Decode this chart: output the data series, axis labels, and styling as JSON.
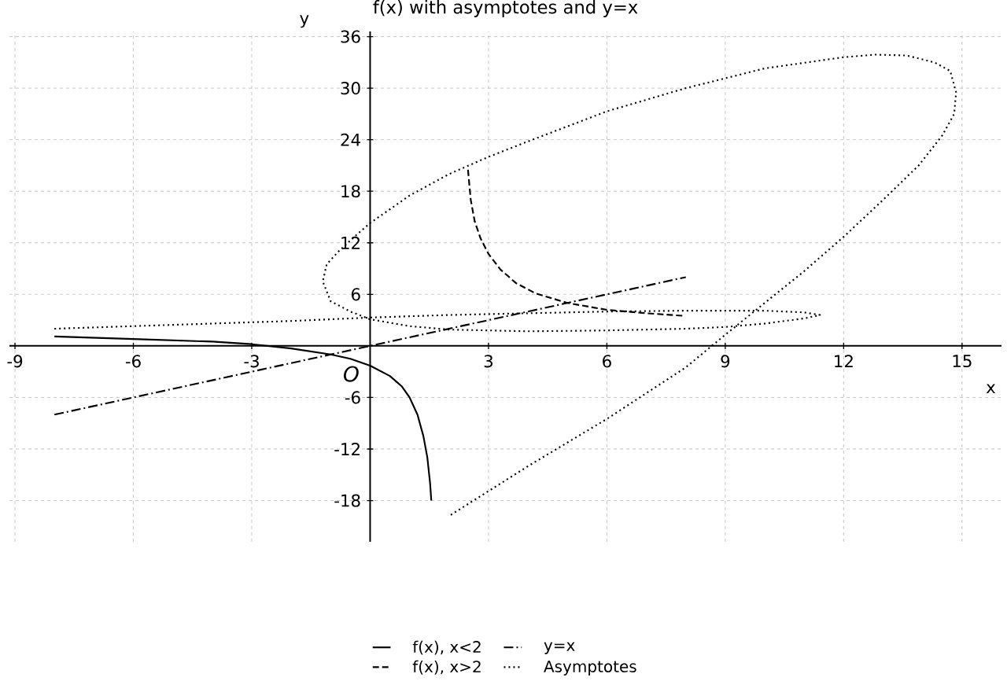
{
  "chart_data": {
    "type": "line",
    "title": "f(x) with asymptotes and y=x",
    "xlabel": "x",
    "ylabel": "y",
    "xlim": [
      -9.14,
      16.0
    ],
    "ylim": [
      -22.8,
      36.6
    ],
    "xticks": [
      -9,
      -6,
      -3,
      3,
      6,
      9,
      12,
      15
    ],
    "yticks": [
      -18,
      -12,
      -6,
      6,
      12,
      18,
      24,
      30,
      36
    ],
    "grid": true,
    "legend": "bottom",
    "marker": "none",
    "annotations": [
      {
        "text": "O",
        "x": 0,
        "y": 0
      }
    ],
    "series": [
      {
        "name": "f(x), x<2",
        "color": "#000000",
        "line_style": "solid",
        "x": [
          -8,
          -6,
          -4,
          -3,
          -2,
          -1,
          -0.5,
          0,
          0.5,
          0.8,
          1.0,
          1.2,
          1.35,
          1.45,
          1.52,
          1.55
        ],
        "values": [
          1.1,
          0.8,
          0.5,
          0.2,
          -0.3,
          -1.0,
          -1.5,
          -2.3,
          -3.5,
          -4.7,
          -6.0,
          -8.0,
          -10.5,
          -13.0,
          -16.0,
          -18.0
        ]
      },
      {
        "name": "f(x), x>2",
        "color": "#000000",
        "line_style": "dashed",
        "x": [
          2.48,
          2.55,
          2.65,
          2.8,
          3.0,
          3.3,
          3.7,
          4.2,
          5.0,
          6.0,
          7.0,
          7.95
        ],
        "values": [
          20.5,
          17.0,
          14.5,
          12.5,
          10.7,
          8.9,
          7.3,
          6.1,
          5.0,
          4.2,
          3.8,
          3.5
        ]
      },
      {
        "name": "y=x",
        "color": "#000000",
        "line_style": "dashdot",
        "x": [
          -8,
          8
        ],
        "values": [
          -8,
          8
        ]
      },
      {
        "name": "Asymptotes",
        "color": "#000000",
        "line_style": "dotted",
        "x": [
          -8,
          -6,
          -4,
          -2,
          0,
          2,
          4,
          6,
          8,
          10,
          11,
          11.4,
          11,
          10,
          9,
          8,
          6,
          4,
          2,
          1,
          0,
          -0.5,
          -1.0,
          -1.2,
          -1.1,
          -0.8,
          -0.4,
          0,
          1,
          2,
          3,
          4,
          6,
          8,
          10,
          12,
          12.8,
          13.6,
          14.3,
          14.7,
          14.85,
          14.8,
          14.5,
          13.9,
          13.0,
          12.0,
          11.0,
          10.0,
          9.0,
          8.0,
          6.0,
          4.0,
          2.0
        ],
        "values": [
          2.0,
          2.3,
          2.6,
          2.9,
          3.3,
          3.6,
          3.8,
          4.0,
          4.1,
          4.1,
          3.9,
          3.6,
          3.2,
          2.6,
          2.2,
          2.0,
          1.8,
          1.7,
          1.9,
          2.3,
          3.1,
          4.0,
          5.2,
          7.5,
          9.5,
          11.0,
          12.7,
          14.3,
          17.5,
          20.0,
          22.0,
          23.8,
          27.3,
          30.0,
          32.3,
          33.6,
          33.9,
          33.8,
          33.0,
          32.0,
          29.5,
          27.0,
          24.5,
          21.0,
          17.0,
          12.7,
          8.7,
          5.0,
          1.3,
          -2.5,
          -8.5,
          -14.0,
          -19.8
        ]
      }
    ]
  }
}
